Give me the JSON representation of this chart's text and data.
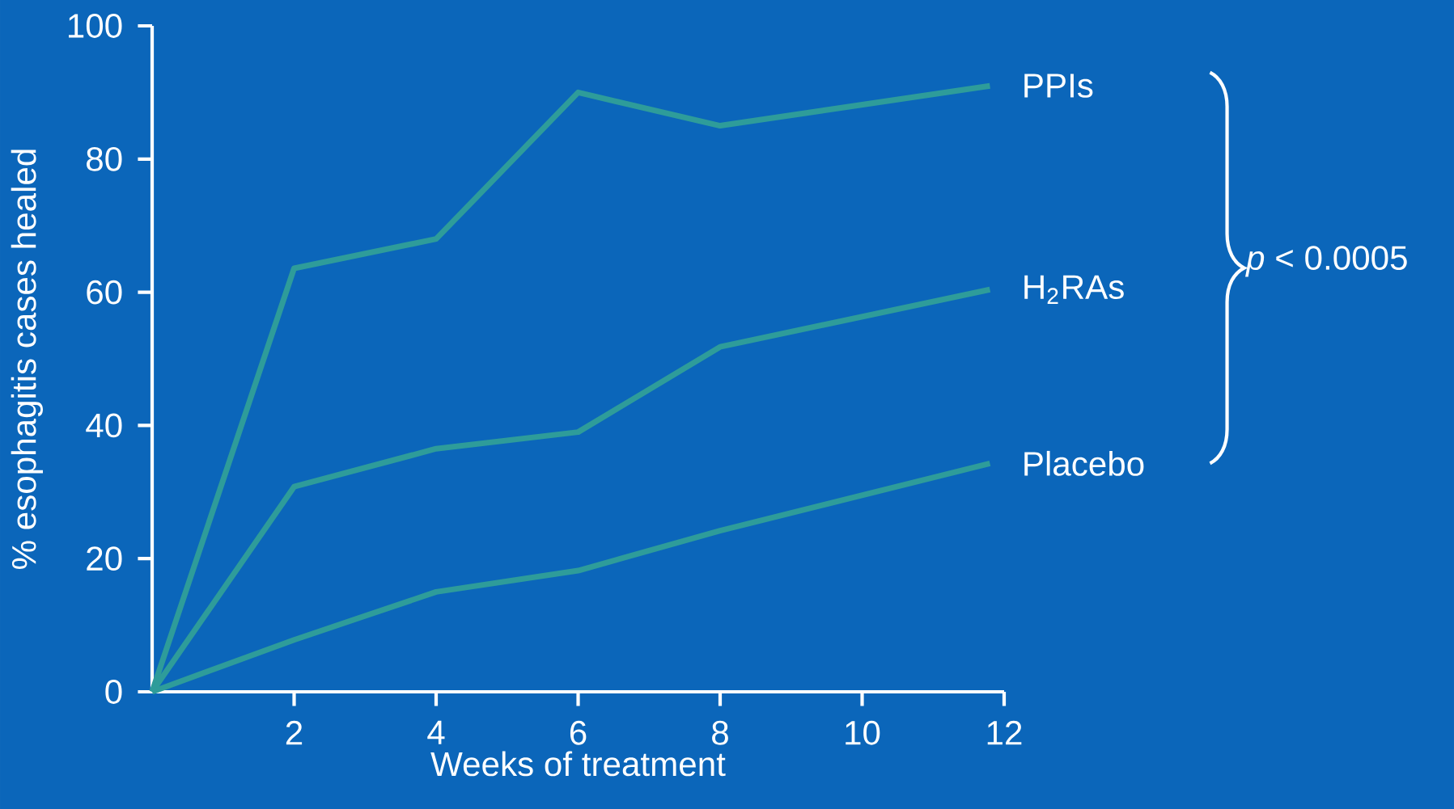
{
  "chart_data": {
    "type": "line",
    "xlabel": "Weeks of treatment",
    "ylabel": "% esophagitis cases healed",
    "xlim": [
      0,
      12
    ],
    "ylim": [
      0,
      100
    ],
    "xticks": [
      2,
      4,
      6,
      8,
      10,
      12
    ],
    "yticks": [
      0,
      20,
      40,
      60,
      80,
      100
    ],
    "grid": false,
    "legend": false,
    "marker": "none",
    "line_style": "solid",
    "x": [
      0,
      2,
      4,
      6,
      8,
      11.8
    ],
    "series": [
      {
        "name": "PPIs",
        "color": "#2e9c9a",
        "values": [
          0,
          63.6,
          68,
          90,
          85,
          91
        ]
      },
      {
        "name": "H$_{2}$RAs",
        "color": "#2e9c9a",
        "values": [
          0,
          30.8,
          36.5,
          39,
          51.8,
          60.4
        ]
      },
      {
        "name": "Placebo",
        "color": "#2e9c9a",
        "values": [
          0,
          7.8,
          15,
          18.2,
          24.2,
          34.3
        ]
      }
    ],
    "annotations": [
      "*p* < 0.0005"
    ]
  }
}
